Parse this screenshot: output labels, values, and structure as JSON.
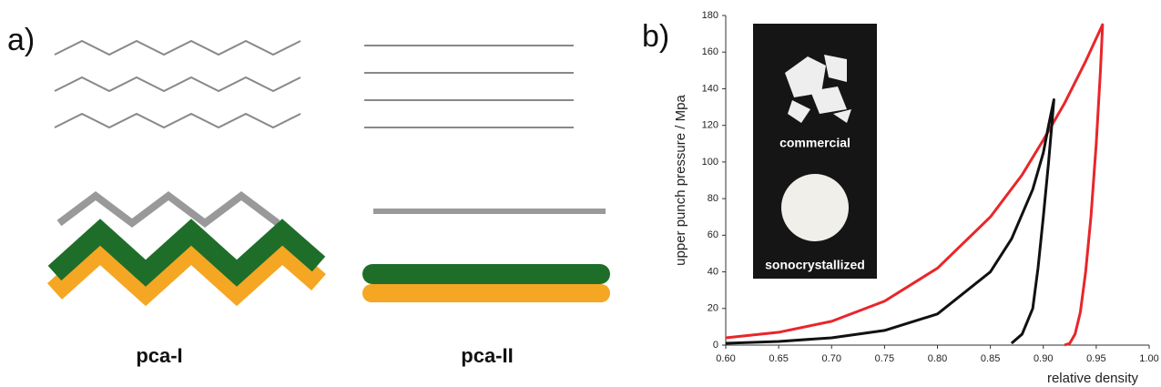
{
  "panel_labels": [
    "a)",
    "b)"
  ],
  "captions": [
    "pca-I",
    "pca-II"
  ],
  "inset_labels": [
    "commercial",
    "sonocrystallized"
  ],
  "chart_data": {
    "type": "line",
    "x_label": "relative density",
    "y_label": "upper punch pressure / Mpa",
    "xlim": [
      0.6,
      1.0
    ],
    "ylim": [
      0,
      180
    ],
    "xticks": [
      {
        "value": 0.6,
        "label": "0.60"
      },
      {
        "value": 0.65,
        "label": "0.65"
      },
      {
        "value": 0.7,
        "label": "0.70"
      },
      {
        "value": 0.75,
        "label": "0.75"
      },
      {
        "value": 0.8,
        "label": "0.80"
      },
      {
        "value": 0.85,
        "label": "0.85"
      },
      {
        "value": 0.9,
        "label": "0.90"
      },
      {
        "value": 0.95,
        "label": "0.95"
      },
      {
        "value": 1.0,
        "label": "1.00"
      }
    ],
    "yticks": [
      0,
      20,
      40,
      60,
      80,
      100,
      120,
      140,
      160,
      180
    ],
    "series": [
      {
        "color": "#e8262a",
        "x": [
          0.6,
          0.65,
          0.7,
          0.75,
          0.8,
          0.85,
          0.88,
          0.9,
          0.92,
          0.94,
          0.956,
          0.954,
          0.95,
          0.945,
          0.94,
          0.935,
          0.93,
          0.925,
          0.92
        ],
        "values": [
          4,
          7,
          13,
          24,
          42,
          70,
          93,
          112,
          132,
          155,
          175,
          150,
          110,
          70,
          40,
          18,
          6,
          1,
          0
        ]
      },
      {
        "color": "#111111",
        "x": [
          0.6,
          0.65,
          0.7,
          0.75,
          0.8,
          0.85,
          0.87,
          0.89,
          0.9,
          0.905,
          0.91,
          0.908,
          0.905,
          0.9,
          0.895,
          0.89,
          0.88,
          0.87
        ],
        "values": [
          1,
          2,
          4,
          8,
          17,
          40,
          58,
          85,
          105,
          120,
          134,
          120,
          100,
          70,
          42,
          20,
          6,
          1
        ]
      }
    ]
  }
}
